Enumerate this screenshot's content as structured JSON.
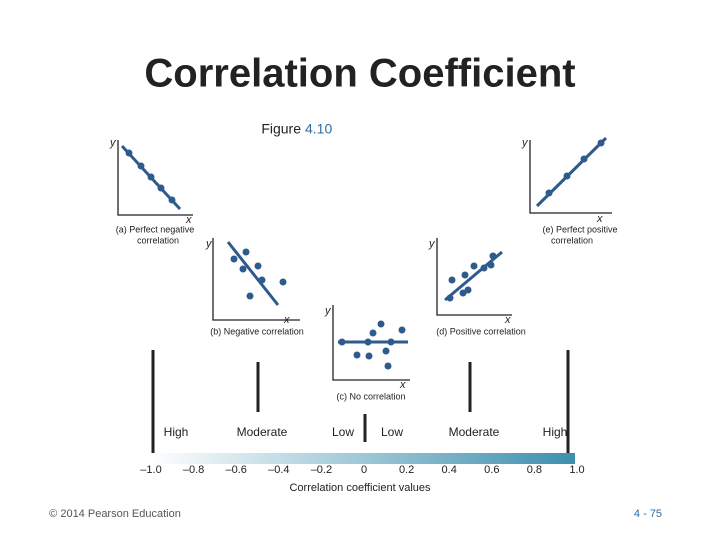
{
  "header": {
    "title": "Correlation Coefficient"
  },
  "figure": {
    "prefix": "Figure",
    "number": "4.10"
  },
  "panels": [
    {
      "y_label": "y",
      "x_label": "x",
      "caption": [
        "(a) Perfect negative",
        "correlation"
      ]
    },
    {
      "y_label": "y",
      "x_label": "x",
      "caption": [
        "(b) Negative correlation"
      ]
    },
    {
      "y_label": "y",
      "x_label": "x",
      "caption": [
        "(c) No correlation"
      ]
    },
    {
      "y_label": "y",
      "x_label": "x",
      "caption": [
        "(d) Positive correlation"
      ]
    },
    {
      "y_label": "y",
      "x_label": "x",
      "caption": [
        "(e) Perfect positive",
        "correlation"
      ]
    }
  ],
  "scale": {
    "strength_labels": [
      "High",
      "Moderate",
      "Low",
      "Low",
      "Moderate",
      "High"
    ],
    "tick_labels": [
      "–1.0",
      "–0.8",
      "–0.6",
      "–0.4",
      "–0.2",
      "0",
      "0.2",
      "0.4",
      "0.6",
      "0.8",
      "1.0"
    ],
    "axis_title": "Correlation coefficient values"
  },
  "footer": {
    "copyright": "© 2014 Pearson Education",
    "page": "4 - 75"
  }
}
